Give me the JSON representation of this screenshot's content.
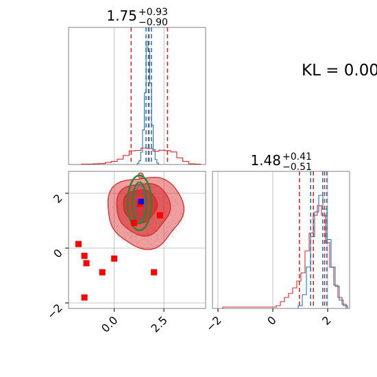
{
  "annotation": "KL = 0.00",
  "colors": {
    "series_a": "#d62728",
    "series_b": "#1f77b4",
    "ellipse": "#1e8c3a",
    "marker": "#ff0000",
    "center_marker": "#0000ff",
    "grid": "#b0b0b0",
    "spine": "#808080"
  },
  "chart_data": [
    {
      "type": "histogram",
      "panel": "top-left",
      "title_value": "1.75",
      "title_plus": "+0.93",
      "title_minus": "−0.90",
      "x_range": [
        -2.3,
        4.6
      ],
      "series": [
        {
          "color": "#d62728",
          "style": "step",
          "bin_centers": [
            -1.5,
            -1.2,
            -0.9,
            -0.6,
            -0.3,
            0.0,
            0.3,
            0.6,
            0.9,
            1.2,
            1.5,
            1.8,
            2.1,
            2.4,
            2.7,
            3.0,
            3.3,
            3.6,
            3.9,
            4.2
          ],
          "counts": [
            0.2,
            0.2,
            0.4,
            0.5,
            1.1,
            1.7,
            2.9,
            4.9,
            7.4,
            7.6,
            8.9,
            8.6,
            7.2,
            7.7,
            7.5,
            6.8,
            3.6,
            1.7,
            0.4,
            0.2
          ],
          "quantiles": [
            0.85,
            1.75,
            2.68
          ]
        },
        {
          "color": "#1f77b4",
          "style": "step",
          "bin_centers": [
            1.2,
            1.29,
            1.38,
            1.47,
            1.56,
            1.65,
            1.74,
            1.83,
            1.92,
            2.01,
            2.1,
            2.19
          ],
          "counts": [
            1,
            3,
            10,
            28,
            58,
            100,
            92,
            66,
            32,
            12,
            4,
            1
          ],
          "quantiles": [
            1.6,
            1.72,
            1.87
          ]
        }
      ]
    },
    {
      "type": "scatter",
      "panel": "bottom-left",
      "x_range": [
        -2.3,
        4.6
      ],
      "y_range": [
        -2.2,
        2.8
      ],
      "x_ticks": [
        "0.0",
        "2.5"
      ],
      "y_ticks": [
        "2",
        "0",
        "−2"
      ],
      "red_square_points": [
        {
          "x": -1.8,
          "y": 0.15
        },
        {
          "x": -1.5,
          "y": -0.28
        },
        {
          "x": -1.4,
          "y": -0.55
        },
        {
          "x": -0.6,
          "y": -0.88
        },
        {
          "x": 0.0,
          "y": -0.38
        },
        {
          "x": -1.5,
          "y": -1.8
        },
        {
          "x": 1.0,
          "y": 0.92
        },
        {
          "x": 2.3,
          "y": 1.2
        },
        {
          "x": 2.0,
          "y": -0.88
        },
        {
          "x": 1.3,
          "y": 1.62
        }
      ],
      "blue_square_point": {
        "x": 1.35,
        "y": 1.7
      },
      "green_ellipse": {
        "center": [
          1.27,
          1.65
        ],
        "half_widths": [
          [
            0.35,
            0.75
          ],
          [
            0.6,
            1.0
          ]
        ]
      }
    },
    {
      "type": "histogram",
      "panel": "bottom-right",
      "title_value": "1.48",
      "title_plus": "+0.41",
      "title_minus": "−0.51",
      "x_range": [
        -2.2,
        2.8
      ],
      "x_ticks": [
        "−2",
        "0",
        "2"
      ],
      "series": [
        {
          "color": "#d62728",
          "style": "step",
          "bin_centers": [
            -1.75,
            -1.25,
            -0.75,
            -0.25,
            0.05,
            0.2,
            0.35,
            0.5,
            0.65,
            0.8,
            0.95,
            1.1,
            1.25,
            1.4,
            1.55,
            1.7,
            1.85,
            2.0,
            2.15,
            2.3,
            2.45,
            2.6
          ],
          "counts": [
            1,
            1,
            1,
            1,
            1,
            2,
            5,
            8,
            11,
            15,
            20,
            26,
            42,
            55,
            68,
            75,
            68,
            48,
            30,
            17,
            8,
            3
          ],
          "quantiles": [
            0.97,
            1.48,
            1.89
          ]
        },
        {
          "color": "#1f77b4",
          "style": "step",
          "bin_centers": [
            1.0,
            1.15,
            1.3,
            1.45,
            1.6,
            1.75,
            1.9,
            2.05,
            2.2,
            2.35,
            2.5,
            2.65
          ],
          "counts": [
            2,
            10,
            30,
            52,
            70,
            82,
            72,
            50,
            30,
            16,
            6,
            2
          ],
          "quantiles": [
            1.38,
            1.82,
            1.97
          ]
        }
      ]
    }
  ]
}
